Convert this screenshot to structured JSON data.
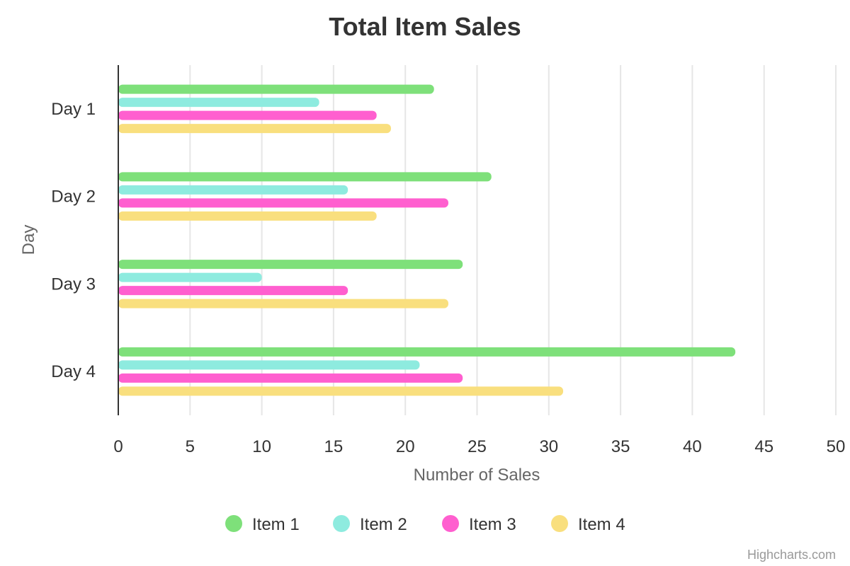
{
  "chart_data": {
    "type": "bar",
    "orientation": "horizontal",
    "title": "Total Item Sales",
    "xlabel": "Number of Sales",
    "ylabel": "Day",
    "categories": [
      "Day 1",
      "Day 2",
      "Day 3",
      "Day 4"
    ],
    "xlim": [
      0,
      50
    ],
    "ticks": [
      0,
      5,
      10,
      15,
      20,
      25,
      30,
      35,
      40,
      45,
      50
    ],
    "grid": true,
    "legend_position": "bottom-center",
    "series": [
      {
        "name": "Item 1",
        "color": "#7ee07a",
        "values": [
          22,
          26,
          24,
          43
        ]
      },
      {
        "name": "Item 2",
        "color": "#8eebdf",
        "values": [
          14,
          16,
          10,
          21
        ]
      },
      {
        "name": "Item 3",
        "color": "#ff5fcf",
        "values": [
          18,
          23,
          16,
          24
        ]
      },
      {
        "name": "Item 4",
        "color": "#f9df7e",
        "values": [
          19,
          18,
          23,
          31
        ]
      }
    ]
  },
  "credit": "Highcharts.com"
}
